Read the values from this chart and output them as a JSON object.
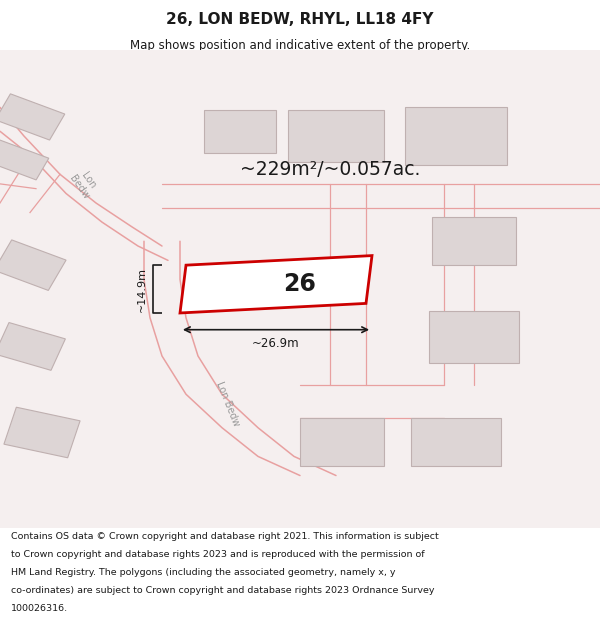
{
  "title": "26, LON BEDW, RHYL, LL18 4FY",
  "subtitle": "Map shows position and indicative extent of the property.",
  "area_text": "~229m²/~0.057ac.",
  "width_text": "~26.9m",
  "height_text": "~14.9m",
  "plot_number": "26",
  "footer_lines": [
    "Contains OS data © Crown copyright and database right 2021. This information is subject",
    "to Crown copyright and database rights 2023 and is reproduced with the permission of",
    "HM Land Registry. The polygons (including the associated geometry, namely x, y",
    "co-ordinates) are subject to Crown copyright and database rights 2023 Ordnance Survey",
    "100026316."
  ],
  "bg_color": "#ffffff",
  "map_bg": "#f5efef",
  "road_color": "#e8a0a0",
  "building_face": "#ddd5d5",
  "building_edge": "#bfb0b0",
  "highlight_color": "#cc0000",
  "text_color": "#1a1a1a",
  "road_label_color": "#999999",
  "title_fontsize": 11,
  "subtitle_fontsize": 8.5,
  "footer_fontsize": 6.8
}
